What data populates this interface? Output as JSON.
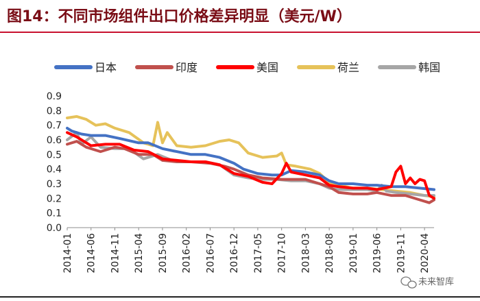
{
  "header": {
    "title": "图14：不同市场组件出口价格差异明显（美元/W）"
  },
  "watermark": {
    "text": "未来智库",
    "icon": "wechat-icon"
  },
  "chart_data": {
    "type": "line",
    "title": "",
    "xlabel": "",
    "ylabel": "",
    "ylim": [
      0,
      0.9
    ],
    "y_ticks": [
      "0.0",
      "0.1",
      "0.2",
      "0.3",
      "0.4",
      "0.5",
      "0.6",
      "0.7",
      "0.8",
      "0.9"
    ],
    "x_tick_labels": [
      "2014-01",
      "2014-06",
      "2014-11",
      "2015-04",
      "2015-09",
      "2016-02",
      "2016-07",
      "2016-12",
      "2017-05",
      "2017-10",
      "2018-03",
      "2018-08",
      "2019-01",
      "2019-06",
      "2019-11",
      "2020-04"
    ],
    "x_range": [
      "2014-01",
      "2020-06"
    ],
    "grid": false,
    "legend_position": "top",
    "series": [
      {
        "name": "日本",
        "color": "#4472c4",
        "points": [
          [
            "2014-01",
            0.68
          ],
          [
            "2014-02",
            0.66
          ],
          [
            "2014-04",
            0.64
          ],
          [
            "2014-06",
            0.63
          ],
          [
            "2014-09",
            0.63
          ],
          [
            "2014-12",
            0.61
          ],
          [
            "2015-04",
            0.58
          ],
          [
            "2015-06",
            0.58
          ],
          [
            "2015-09",
            0.54
          ],
          [
            "2015-12",
            0.52
          ],
          [
            "2016-03",
            0.5
          ],
          [
            "2016-06",
            0.5
          ],
          [
            "2016-09",
            0.48
          ],
          [
            "2016-12",
            0.44
          ],
          [
            "2017-02",
            0.4
          ],
          [
            "2017-05",
            0.37
          ],
          [
            "2017-08",
            0.36
          ],
          [
            "2017-10",
            0.36
          ],
          [
            "2017-12",
            0.39
          ],
          [
            "2018-03",
            0.38
          ],
          [
            "2018-06",
            0.36
          ],
          [
            "2018-08",
            0.32
          ],
          [
            "2018-10",
            0.3
          ],
          [
            "2019-01",
            0.3
          ],
          [
            "2019-04",
            0.29
          ],
          [
            "2019-06",
            0.29
          ],
          [
            "2019-09",
            0.28
          ],
          [
            "2019-12",
            0.28
          ],
          [
            "2020-03",
            0.27
          ],
          [
            "2020-06",
            0.26
          ]
        ]
      },
      {
        "name": "印度",
        "color": "#c0504d",
        "points": [
          [
            "2014-01",
            0.57
          ],
          [
            "2014-03",
            0.59
          ],
          [
            "2014-05",
            0.55
          ],
          [
            "2014-08",
            0.52
          ],
          [
            "2014-11",
            0.55
          ],
          [
            "2015-01",
            0.54
          ],
          [
            "2015-04",
            0.5
          ],
          [
            "2015-07",
            0.5
          ],
          [
            "2015-09",
            0.46
          ],
          [
            "2015-12",
            0.45
          ],
          [
            "2016-03",
            0.45
          ],
          [
            "2016-07",
            0.44
          ],
          [
            "2016-10",
            0.42
          ],
          [
            "2016-12",
            0.4
          ],
          [
            "2017-03",
            0.36
          ],
          [
            "2017-06",
            0.34
          ],
          [
            "2017-10",
            0.33
          ],
          [
            "2018-01",
            0.33
          ],
          [
            "2018-03",
            0.33
          ],
          [
            "2018-06",
            0.3
          ],
          [
            "2018-08",
            0.28
          ],
          [
            "2018-10",
            0.24
          ],
          [
            "2019-01",
            0.23
          ],
          [
            "2019-04",
            0.23
          ],
          [
            "2019-06",
            0.24
          ],
          [
            "2019-09",
            0.22
          ],
          [
            "2019-12",
            0.22
          ],
          [
            "2020-03",
            0.19
          ],
          [
            "2020-05",
            0.17
          ],
          [
            "2020-06",
            0.19
          ]
        ]
      },
      {
        "name": "美国",
        "color": "#ff0000",
        "points": [
          [
            "2014-01",
            0.65
          ],
          [
            "2014-03",
            0.62
          ],
          [
            "2014-06",
            0.56
          ],
          [
            "2014-09",
            0.57
          ],
          [
            "2014-12",
            0.57
          ],
          [
            "2015-03",
            0.53
          ],
          [
            "2015-06",
            0.52
          ],
          [
            "2015-09",
            0.47
          ],
          [
            "2015-12",
            0.46
          ],
          [
            "2016-03",
            0.45
          ],
          [
            "2016-06",
            0.45
          ],
          [
            "2016-09",
            0.43
          ],
          [
            "2016-12",
            0.37
          ],
          [
            "2017-03",
            0.35
          ],
          [
            "2017-06",
            0.31
          ],
          [
            "2017-08",
            0.3
          ],
          [
            "2017-10",
            0.37
          ],
          [
            "2017-11",
            0.44
          ],
          [
            "2017-12",
            0.38
          ],
          [
            "2018-03",
            0.36
          ],
          [
            "2018-06",
            0.34
          ],
          [
            "2018-08",
            0.29
          ],
          [
            "2018-10",
            0.28
          ],
          [
            "2019-01",
            0.27
          ],
          [
            "2019-04",
            0.27
          ],
          [
            "2019-06",
            0.26
          ],
          [
            "2019-09",
            0.28
          ],
          [
            "2019-10",
            0.38
          ],
          [
            "2019-11",
            0.42
          ],
          [
            "2019-12",
            0.3
          ],
          [
            "2020-01",
            0.34
          ],
          [
            "2020-02",
            0.3
          ],
          [
            "2020-03",
            0.33
          ],
          [
            "2020-04",
            0.32
          ],
          [
            "2020-05",
            0.22
          ],
          [
            "2020-06",
            0.2
          ]
        ]
      },
      {
        "name": "荷兰",
        "color": "#e6c25a",
        "points": [
          [
            "2014-01",
            0.75
          ],
          [
            "2014-03",
            0.76
          ],
          [
            "2014-05",
            0.74
          ],
          [
            "2014-07",
            0.7
          ],
          [
            "2014-09",
            0.71
          ],
          [
            "2014-11",
            0.68
          ],
          [
            "2015-02",
            0.65
          ],
          [
            "2015-05",
            0.58
          ],
          [
            "2015-07",
            0.56
          ],
          [
            "2015-08",
            0.72
          ],
          [
            "2015-09",
            0.58
          ],
          [
            "2015-10",
            0.65
          ],
          [
            "2015-12",
            0.56
          ],
          [
            "2016-03",
            0.55
          ],
          [
            "2016-06",
            0.56
          ],
          [
            "2016-09",
            0.59
          ],
          [
            "2016-11",
            0.6
          ],
          [
            "2017-01",
            0.58
          ],
          [
            "2017-03",
            0.51
          ],
          [
            "2017-06",
            0.48
          ],
          [
            "2017-09",
            0.49
          ],
          [
            "2017-10",
            0.51
          ],
          [
            "2017-11",
            0.43
          ],
          [
            "2018-01",
            0.42
          ],
          [
            "2018-04",
            0.4
          ],
          [
            "2018-06",
            0.37
          ],
          [
            "2018-08",
            0.31
          ],
          [
            "2018-10",
            0.29
          ],
          [
            "2019-01",
            0.27
          ],
          [
            "2019-04",
            0.27
          ],
          [
            "2019-07",
            0.26
          ],
          [
            "2019-10",
            0.25
          ],
          [
            "2020-01",
            0.24
          ],
          [
            "2020-04",
            0.22
          ],
          [
            "2020-06",
            0.21
          ]
        ]
      },
      {
        "name": "韩国",
        "color": "#a6a6a6",
        "points": [
          [
            "2014-01",
            0.6
          ],
          [
            "2014-03",
            0.65
          ],
          [
            "2014-04",
            0.57
          ],
          [
            "2014-06",
            0.62
          ],
          [
            "2014-08",
            0.55
          ],
          [
            "2014-11",
            0.54
          ],
          [
            "2015-02",
            0.54
          ],
          [
            "2015-05",
            0.47
          ],
          [
            "2015-08",
            0.5
          ],
          [
            "2015-11",
            0.46
          ],
          [
            "2016-02",
            0.45
          ],
          [
            "2016-06",
            0.45
          ],
          [
            "2016-09",
            0.43
          ],
          [
            "2016-12",
            0.36
          ],
          [
            "2017-03",
            0.34
          ],
          [
            "2017-06",
            0.33
          ],
          [
            "2017-09",
            0.33
          ],
          [
            "2017-12",
            0.32
          ],
          [
            "2018-03",
            0.32
          ],
          [
            "2018-06",
            0.3
          ],
          [
            "2018-08",
            0.27
          ],
          [
            "2018-10",
            0.26
          ],
          [
            "2019-01",
            0.26
          ],
          [
            "2019-04",
            0.26
          ],
          [
            "2019-06",
            0.25
          ],
          [
            "2019-07",
            0.29
          ],
          [
            "2019-08",
            0.25
          ],
          [
            "2019-10",
            0.24
          ],
          [
            "2020-01",
            0.23
          ],
          [
            "2020-04",
            0.22
          ],
          [
            "2020-06",
            0.22
          ]
        ]
      }
    ]
  }
}
